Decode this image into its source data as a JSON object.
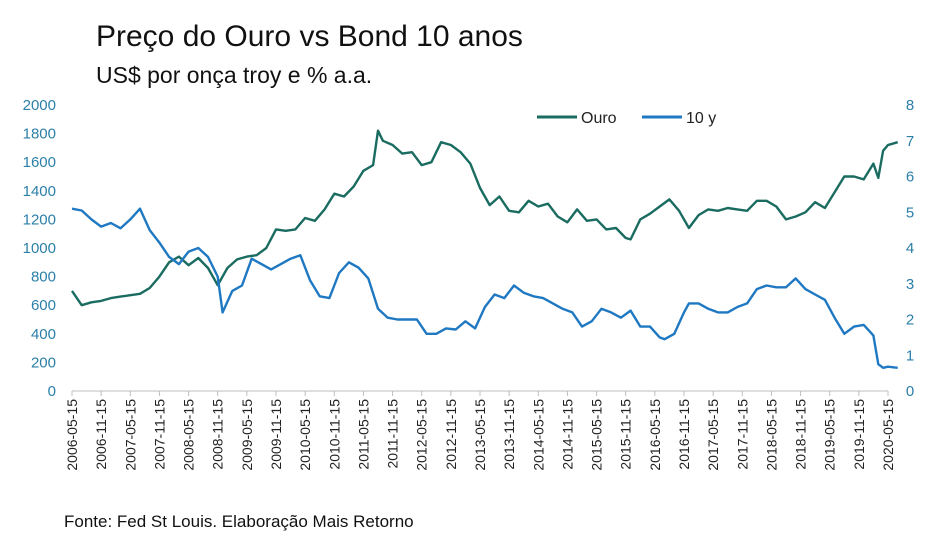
{
  "title": "Preço do Ouro vs Bond 10 anos",
  "subtitle": "US$ por onça troy e % a.a.",
  "source": "Fonte: Fed St Louis. Elaboração Mais Retorno",
  "colors": {
    "ouro": "#1a6b60",
    "bond": "#1f78c2",
    "axis_tick": "#2b7fa8"
  },
  "chart_data": {
    "type": "line",
    "x_ticks": [
      "2006-05-15",
      "2006-11-15",
      "2007-05-15",
      "2007-11-15",
      "2008-05-15",
      "2008-11-15",
      "2009-05-15",
      "2009-11-15",
      "2010-05-15",
      "2010-11-15",
      "2011-05-15",
      "2011-11-15",
      "2012-05-15",
      "2012-11-15",
      "2013-05-15",
      "2013-11-15",
      "2014-05-15",
      "2014-11-15",
      "2015-05-15",
      "2015-11-15",
      "2016-05-15",
      "2016-11-15",
      "2017-05-15",
      "2017-11-15",
      "2018-05-15",
      "2018-11-15",
      "2019-05-15",
      "2019-11-15",
      "2020-05-15"
    ],
    "y_left": {
      "min": 0,
      "max": 2000,
      "ticks": [
        0,
        200,
        400,
        600,
        800,
        1000,
        1200,
        1400,
        1600,
        1800,
        2000
      ]
    },
    "y_right": {
      "min": 0,
      "max": 8,
      "ticks": [
        0,
        1,
        2,
        3,
        4,
        5,
        6,
        7,
        8
      ]
    },
    "grid": false,
    "legend_position": "top",
    "series": [
      {
        "name": "Ouro",
        "axis": "left",
        "x": [
          "2006-05",
          "2006-07",
          "2006-09",
          "2006-11",
          "2007-01",
          "2007-03",
          "2007-05",
          "2007-07",
          "2007-09",
          "2007-11",
          "2008-01",
          "2008-03",
          "2008-05",
          "2008-07",
          "2008-09",
          "2008-11",
          "2009-01",
          "2009-03",
          "2009-05",
          "2009-07",
          "2009-09",
          "2009-11",
          "2010-01",
          "2010-03",
          "2010-05",
          "2010-07",
          "2010-09",
          "2010-11",
          "2011-01",
          "2011-03",
          "2011-05",
          "2011-07",
          "2011-08",
          "2011-09",
          "2011-11",
          "2012-01",
          "2012-03",
          "2012-05",
          "2012-07",
          "2012-09",
          "2012-11",
          "2013-01",
          "2013-03",
          "2013-05",
          "2013-07",
          "2013-09",
          "2013-11",
          "2014-01",
          "2014-03",
          "2014-05",
          "2014-07",
          "2014-09",
          "2014-11",
          "2015-01",
          "2015-03",
          "2015-05",
          "2015-07",
          "2015-09",
          "2015-11",
          "2015-12",
          "2016-02",
          "2016-04",
          "2016-06",
          "2016-08",
          "2016-10",
          "2016-12",
          "2017-02",
          "2017-04",
          "2017-06",
          "2017-08",
          "2017-10",
          "2017-12",
          "2018-02",
          "2018-04",
          "2018-06",
          "2018-08",
          "2018-10",
          "2018-12",
          "2019-02",
          "2019-04",
          "2019-06",
          "2019-08",
          "2019-10",
          "2019-12",
          "2020-02",
          "2020-03",
          "2020-04",
          "2020-05",
          "2020-07"
        ],
        "values": [
          700,
          600,
          620,
          630,
          650,
          660,
          670,
          680,
          720,
          800,
          900,
          940,
          880,
          930,
          860,
          740,
          860,
          920,
          940,
          950,
          1000,
          1130,
          1120,
          1130,
          1210,
          1190,
          1270,
          1380,
          1360,
          1430,
          1540,
          1580,
          1820,
          1750,
          1720,
          1660,
          1670,
          1580,
          1600,
          1740,
          1720,
          1670,
          1590,
          1420,
          1300,
          1360,
          1260,
          1250,
          1330,
          1290,
          1310,
          1220,
          1180,
          1270,
          1190,
          1200,
          1130,
          1140,
          1070,
          1060,
          1200,
          1240,
          1290,
          1340,
          1260,
          1140,
          1230,
          1270,
          1260,
          1280,
          1270,
          1260,
          1330,
          1330,
          1290,
          1200,
          1220,
          1250,
          1320,
          1280,
          1390,
          1500,
          1500,
          1480,
          1590,
          1490,
          1680,
          1720,
          1740
        ]
      },
      {
        "name": "10 y",
        "axis": "right",
        "x": [
          "2006-05",
          "2006-07",
          "2006-09",
          "2006-11",
          "2007-01",
          "2007-03",
          "2007-05",
          "2007-07",
          "2007-09",
          "2007-11",
          "2008-01",
          "2008-03",
          "2008-05",
          "2008-07",
          "2008-09",
          "2008-11",
          "2008-12",
          "2009-02",
          "2009-04",
          "2009-06",
          "2009-08",
          "2009-10",
          "2009-12",
          "2010-02",
          "2010-04",
          "2010-06",
          "2010-08",
          "2010-10",
          "2010-12",
          "2011-02",
          "2011-04",
          "2011-06",
          "2011-08",
          "2011-10",
          "2011-12",
          "2012-02",
          "2012-04",
          "2012-06",
          "2012-08",
          "2012-10",
          "2012-12",
          "2013-02",
          "2013-04",
          "2013-06",
          "2013-08",
          "2013-10",
          "2013-12",
          "2014-02",
          "2014-04",
          "2014-06",
          "2014-08",
          "2014-10",
          "2014-12",
          "2015-02",
          "2015-04",
          "2015-06",
          "2015-08",
          "2015-10",
          "2015-12",
          "2016-02",
          "2016-04",
          "2016-06",
          "2016-07",
          "2016-09",
          "2016-11",
          "2016-12",
          "2017-02",
          "2017-04",
          "2017-06",
          "2017-08",
          "2017-10",
          "2017-12",
          "2018-02",
          "2018-04",
          "2018-06",
          "2018-08",
          "2018-10",
          "2018-12",
          "2019-02",
          "2019-04",
          "2019-06",
          "2019-08",
          "2019-10",
          "2019-12",
          "2020-01",
          "2020-02",
          "2020-03",
          "2020-04",
          "2020-05",
          "2020-07"
        ],
        "values": [
          5.1,
          5.05,
          4.8,
          4.6,
          4.7,
          4.55,
          4.8,
          5.1,
          4.5,
          4.15,
          3.75,
          3.55,
          3.9,
          4.0,
          3.75,
          3.2,
          2.2,
          2.8,
          2.95,
          3.7,
          3.55,
          3.4,
          3.55,
          3.7,
          3.8,
          3.1,
          2.65,
          2.6,
          3.3,
          3.6,
          3.45,
          3.15,
          2.3,
          2.05,
          2.0,
          2.0,
          2.0,
          1.6,
          1.6,
          1.75,
          1.72,
          1.95,
          1.75,
          2.35,
          2.7,
          2.6,
          2.95,
          2.75,
          2.65,
          2.6,
          2.45,
          2.3,
          2.2,
          1.8,
          1.95,
          2.3,
          2.2,
          2.05,
          2.25,
          1.8,
          1.8,
          1.5,
          1.45,
          1.6,
          2.2,
          2.45,
          2.45,
          2.3,
          2.2,
          2.2,
          2.35,
          2.45,
          2.85,
          2.95,
          2.9,
          2.9,
          3.15,
          2.85,
          2.7,
          2.55,
          2.05,
          1.6,
          1.8,
          1.85,
          1.7,
          1.55,
          0.75,
          0.65,
          0.68,
          0.65
        ]
      }
    ]
  }
}
